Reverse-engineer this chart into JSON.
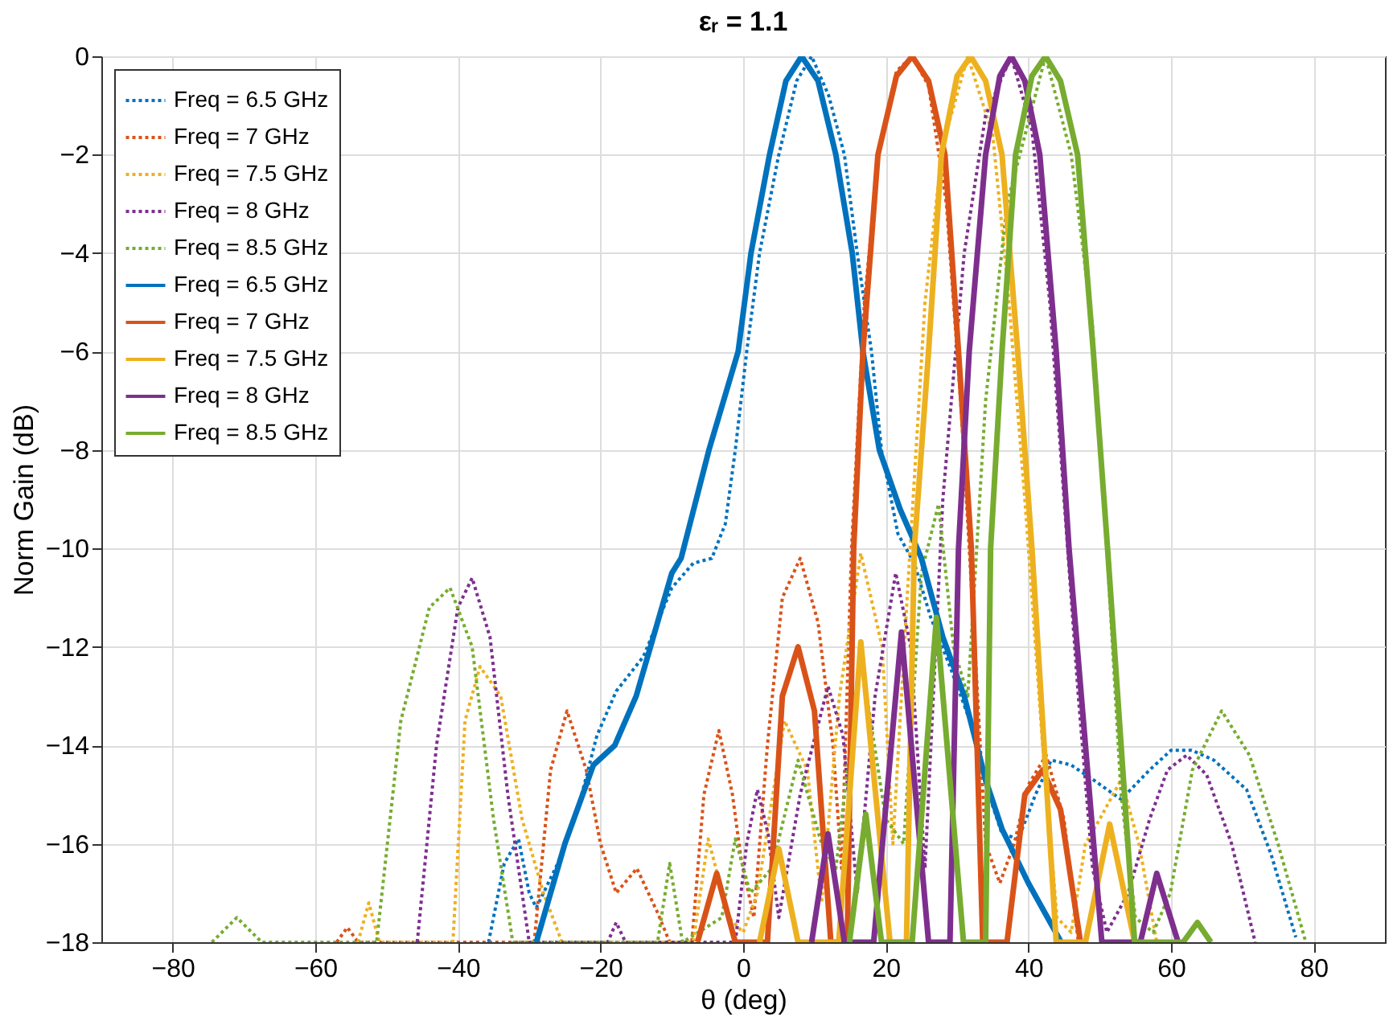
{
  "chart_data": {
    "type": "line",
    "title": "εᵣ = 1.1",
    "xlabel": "θ (deg)",
    "ylabel": "Norm Gain (dB)",
    "xlim": [
      -90,
      90
    ],
    "ylim": [
      -18,
      0
    ],
    "xticks": [
      -80,
      -60,
      -40,
      -20,
      0,
      20,
      40,
      60,
      80
    ],
    "yticks": [
      -18,
      -16,
      -14,
      -12,
      -10,
      -8,
      -6,
      -4,
      -2,
      0
    ],
    "grid": true,
    "legend": "top left",
    "marker": "none",
    "series": [
      {
        "name": "Freq = 6.5 GHz",
        "color": "#0072bd",
        "line_style": "dotted",
        "x": [
          -35.7,
          -33.5,
          -31.5,
          -30,
          -29,
          -26,
          -23,
          -20.5,
          -17.8,
          -14,
          -10,
          -7,
          -4.4,
          -2.5,
          -1.1,
          0.5,
          2.3,
          5,
          7.5,
          9.6,
          12,
          14.2,
          16,
          18,
          19.4,
          21.7,
          24,
          26.3,
          29,
          31.8,
          34,
          36.3,
          38.6,
          41,
          43.2,
          46,
          49.1,
          53,
          57,
          60,
          62.9,
          66,
          70.6,
          74,
          77.5
        ],
        "values": [
          -18,
          -16.4,
          -15.9,
          -17,
          -17.3,
          -16.4,
          -15.2,
          -13.8,
          -12.9,
          -12.2,
          -10.8,
          -10.3,
          -10.2,
          -9.5,
          -8,
          -6,
          -4,
          -2,
          -0.5,
          0,
          -0.8,
          -2,
          -4,
          -6,
          -8,
          -9.7,
          -10.3,
          -11.4,
          -12.4,
          -13.5,
          -14.8,
          -15.8,
          -15.9,
          -15,
          -14.3,
          -14.4,
          -14.7,
          -15.1,
          -14.5,
          -14.1,
          -14.1,
          -14.3,
          -14.9,
          -16.2,
          -17.9
        ]
      },
      {
        "name": "Freq = 7 GHz",
        "color": "#d95319",
        "line_style": "dotted",
        "x": [
          -57,
          -55.5,
          -54,
          -29.3,
          -27,
          -24.7,
          -22,
          -20,
          -17.8,
          -14.9,
          -12,
          -10.3,
          -7.2,
          -5.5,
          -3.4,
          -1.5,
          -0.3,
          1.5,
          3.4,
          5.5,
          8,
          10.5,
          12.6,
          13.8,
          15.2,
          17,
          19,
          21.5,
          23.7,
          26,
          28.5,
          30.5,
          32.5,
          34,
          36,
          38,
          40,
          42.5,
          45,
          47
        ],
        "values": [
          -18,
          -17.7,
          -18,
          -18,
          -14.5,
          -13.3,
          -14.5,
          -16,
          -17,
          -16.5,
          -17.4,
          -18,
          -18,
          -15,
          -13.7,
          -15,
          -16.3,
          -17.5,
          -14,
          -11,
          -10.2,
          -11.5,
          -14,
          -16.5,
          -10,
          -5,
          -2,
          -0.3,
          0,
          -0.6,
          -3,
          -7,
          -12,
          -16,
          -16.8,
          -16,
          -14.8,
          -14.2,
          -15.5,
          -18
        ]
      },
      {
        "name": "Freq = 7.5 GHz",
        "color": "#edb120",
        "line_style": "dotted",
        "x": [
          -54,
          -52.5,
          -51,
          -40.7,
          -39,
          -36.9,
          -34,
          -31,
          -28,
          -25.4,
          -7,
          -4.9,
          -2,
          0,
          2,
          5.8,
          9,
          11,
          13.5,
          16.5,
          19.5,
          21,
          23,
          25.5,
          28,
          31.5,
          35,
          37,
          39.5,
          42,
          44,
          46,
          48,
          50,
          53,
          55.5,
          58
        ],
        "values": [
          -18,
          -17.2,
          -18,
          -18,
          -13.5,
          -12.4,
          -13,
          -15.5,
          -17,
          -18,
          -18,
          -15.9,
          -17.5,
          -17.8,
          -17,
          -13.5,
          -14.5,
          -17.2,
          -13,
          -10.1,
          -12,
          -16,
          -11,
          -5,
          -1.8,
          0,
          -1.6,
          -4.5,
          -9,
          -14,
          -17.5,
          -17.8,
          -16,
          -15.5,
          -14.7,
          -16,
          -18
        ]
      },
      {
        "name": "Freq = 8 GHz",
        "color": "#7e2f8e",
        "line_style": "dotted",
        "x": [
          -45.7,
          -43,
          -40,
          -38,
          -35.5,
          -33,
          -30,
          -19,
          -17.8,
          -16.5,
          -1.1,
          0.5,
          2,
          3.5,
          5,
          8,
          11.9,
          14,
          16,
          18.5,
          21.4,
          23.5,
          25.5,
          28,
          31,
          34,
          37.6,
          40.5,
          43,
          45,
          47,
          49,
          51,
          54,
          57,
          59.5,
          62.2,
          65,
          68.5,
          71.8
        ],
        "values": [
          -18,
          -14,
          -11.2,
          -10.6,
          -11.8,
          -15,
          -18,
          -18,
          -17.6,
          -18,
          -18,
          -16,
          -14.9,
          -15.8,
          -17.5,
          -15,
          -12.8,
          -13.8,
          -17,
          -13,
          -10.5,
          -12,
          -16.5,
          -9,
          -4,
          -1.2,
          0,
          -1.5,
          -5,
          -9,
          -13,
          -16.5,
          -17.8,
          -17,
          -15.5,
          -14.5,
          -14.2,
          -14.6,
          -16,
          -18
        ]
      },
      {
        "name": "Freq = 8.5 GHz",
        "color": "#77ac30",
        "line_style": "dotted",
        "x": [
          -74.5,
          -71,
          -67.5,
          -51.4,
          -48,
          -44,
          -41.1,
          -38,
          -35,
          -32.3,
          -12,
          -10.3,
          -8.5,
          -3,
          -1.1,
          1,
          4,
          7.7,
          11,
          13,
          16.5,
          20,
          22.5,
          25,
          27.4,
          29.5,
          31.5,
          34,
          37,
          42.4,
          46,
          49,
          51,
          53,
          55,
          57.5,
          59.9,
          63,
          67.1,
          71,
          75,
          78.9
        ],
        "values": [
          -18,
          -17.5,
          -18,
          -18,
          -13.5,
          -11.2,
          -10.8,
          -12,
          -15.5,
          -18,
          -18,
          -16.4,
          -18,
          -17.5,
          -15.9,
          -17,
          -16.5,
          -14.3,
          -16,
          -16.5,
          -12.2,
          -15.5,
          -16,
          -10.5,
          -9.1,
          -12,
          -13,
          -7,
          -3,
          0,
          -2,
          -5.5,
          -10,
          -15,
          -17.5,
          -17.8,
          -17,
          -14.5,
          -13.3,
          -14.2,
          -16,
          -18
        ]
      },
      {
        "name": "Freq = 6.5 GHz",
        "color": "#0072bd",
        "line_style": "solid",
        "x": [
          -29,
          -25,
          -21,
          -18,
          -15,
          -13,
          -10,
          -8.7,
          -4.8,
          -0.7,
          1.1,
          3.7,
          6,
          8.2,
          10.5,
          13,
          15.3,
          16.8,
          19.1,
          22,
          25,
          28,
          31,
          34,
          36.3,
          40,
          44.6
        ],
        "values": [
          -18,
          -16,
          -14.4,
          -14,
          -13,
          -12,
          -10.5,
          -10.2,
          -8,
          -6,
          -4,
          -2,
          -0.5,
          0,
          -0.5,
          -2,
          -4,
          -6,
          -8,
          -9.2,
          -10.2,
          -11.8,
          -13,
          -14.7,
          -15.7,
          -16.8,
          -18
        ]
      },
      {
        "name": "Freq = 7 GHz",
        "color": "#d95319",
        "line_style": "solid",
        "x": [
          -6.4,
          -3.7,
          -1.1,
          3.4,
          5.5,
          7.7,
          10,
          12.3,
          14.6,
          15.5,
          16.8,
          18.9,
          21.5,
          23.7,
          26,
          28.3,
          30.2,
          32,
          33.6,
          37,
          39.5,
          42,
          44.5,
          47.3
        ],
        "values": [
          -18,
          -16.6,
          -18,
          -18,
          -13,
          -12,
          -13.3,
          -18,
          -18,
          -10,
          -6,
          -2,
          -0.4,
          0,
          -0.5,
          -2,
          -6,
          -10,
          -18,
          -18,
          -15,
          -14.5,
          -15.3,
          -18
        ]
      },
      {
        "name": "Freq = 7.5 GHz",
        "color": "#edb120",
        "line_style": "solid",
        "x": [
          2.3,
          5,
          7.7,
          13.4,
          16.5,
          20.6,
          22.9,
          24,
          26,
          27.8,
          30,
          31.9,
          34,
          36.3,
          38.5,
          40.5,
          43.9,
          48,
          51.4,
          54.9
        ],
        "values": [
          -18,
          -16.1,
          -18,
          -18,
          -11.9,
          -18,
          -18,
          -10,
          -6,
          -2,
          -0.4,
          0,
          -0.5,
          -2,
          -6,
          -10,
          -18,
          -18,
          -15.6,
          -18
        ]
      },
      {
        "name": "Freq = 8 GHz",
        "color": "#7e2f8e",
        "line_style": "solid",
        "x": [
          9.6,
          11.9,
          14.2,
          18.3,
          22.2,
          26,
          29,
          30.2,
          31.7,
          34,
          36,
          37.6,
          39.5,
          41.6,
          43.9,
          45.7,
          50.3,
          55.7,
          58,
          61
        ],
        "values": [
          -18,
          -15.8,
          -18,
          -18,
          -11.7,
          -18,
          -18,
          -10,
          -6,
          -2,
          -0.4,
          0,
          -0.5,
          -2,
          -6,
          -10,
          -18,
          -18,
          -16.6,
          -18
        ]
      },
      {
        "name": "Freq = 8.5 GHz",
        "color": "#77ac30",
        "line_style": "solid",
        "x": [
          14.9,
          17.2,
          19.4,
          23.7,
          27.1,
          30.9,
          34,
          34.7,
          36.3,
          38.2,
          40.5,
          42.4,
          44.5,
          46.9,
          49.1,
          51.1,
          54.9,
          61.7,
          63.7,
          65.6
        ],
        "values": [
          -18,
          -15.4,
          -18,
          -18,
          -11.4,
          -18,
          -18,
          -10,
          -6,
          -2,
          -0.4,
          0,
          -0.5,
          -2,
          -6,
          -10,
          -18,
          -18,
          -17.6,
          -18
        ]
      }
    ]
  }
}
